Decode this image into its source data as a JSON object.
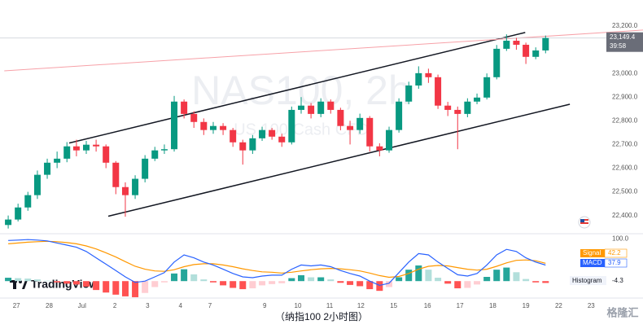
{
  "chart_data": [
    {
      "type": "candlestick",
      "title": "NAS100, 2h",
      "subtitle": "US 100 Cash CFD",
      "up_color": "#089981",
      "down_color": "#f23645",
      "x": [
        -0.25,
        0.05,
        0.35,
        0.64,
        0.94,
        1.24,
        1.54,
        1.83,
        2.13,
        2.43,
        2.73,
        3.03,
        3.32,
        3.62,
        3.92,
        4.22,
        4.51,
        4.81,
        5.11,
        5.41,
        5.71,
        6.0,
        6.3,
        6.6,
        6.9,
        7.2,
        7.49,
        7.79,
        8.09,
        8.39,
        8.68,
        8.98,
        9.28,
        9.58,
        9.88,
        10.17,
        10.47,
        10.77,
        11.07,
        11.36,
        11.66,
        11.96,
        12.26,
        12.56,
        12.85,
        13.15,
        13.45,
        13.75,
        14.04,
        14.34,
        14.64,
        14.94,
        15.24,
        15.53,
        15.83,
        16.13
      ],
      "open": [
        22360,
        22383,
        22434,
        22486,
        22572,
        22623,
        22640,
        22692,
        22675,
        22699,
        22692,
        22623,
        22520,
        22486,
        22555,
        22640,
        22675,
        22680,
        22881,
        22829,
        22795,
        22761,
        22778,
        22761,
        22709,
        22675,
        22726,
        22761,
        22733,
        22709,
        22846,
        22864,
        22829,
        22881,
        22846,
        22778,
        22761,
        22812,
        22692,
        22675,
        22761,
        22881,
        22949,
        23001,
        22984,
        22864,
        22846,
        22829,
        22881,
        22898,
        22984,
        23104,
        23138,
        23121,
        23070,
        23097
      ],
      "high": [
        22400,
        22450,
        22500,
        22590,
        22640,
        22670,
        22710,
        22720,
        22715,
        22720,
        22700,
        22630,
        22540,
        22570,
        22655,
        22690,
        22700,
        22905,
        22890,
        22840,
        22810,
        22795,
        22790,
        22770,
        22720,
        22740,
        22775,
        22770,
        22745,
        22860,
        22900,
        22875,
        22895,
        22890,
        22855,
        22800,
        22830,
        22820,
        22705,
        22775,
        22895,
        22965,
        23030,
        23020,
        22995,
        22880,
        22860,
        22895,
        22915,
        23000,
        23120,
        23165,
        23150,
        23130,
        23110,
        23160
      ],
      "low": [
        22345,
        22375,
        22420,
        22470,
        22555,
        22600,
        22625,
        22650,
        22660,
        22670,
        22600,
        22490,
        22395,
        22470,
        22540,
        22630,
        22660,
        22670,
        22810,
        22770,
        22740,
        22745,
        22740,
        22690,
        22615,
        22660,
        22715,
        22720,
        22690,
        22700,
        22830,
        22810,
        22815,
        22830,
        22760,
        22700,
        22745,
        22670,
        22650,
        22665,
        22750,
        22870,
        22935,
        22960,
        22850,
        22820,
        22680,
        22815,
        22870,
        22890,
        22975,
        23095,
        23100,
        23040,
        23060,
        23085
      ],
      "close": [
        22383,
        22434,
        22486,
        22572,
        22623,
        22640,
        22692,
        22675,
        22699,
        22692,
        22623,
        22520,
        22486,
        22555,
        22640,
        22675,
        22680,
        22881,
        22829,
        22795,
        22761,
        22778,
        22761,
        22709,
        22675,
        22726,
        22761,
        22733,
        22709,
        22846,
        22864,
        22829,
        22881,
        22846,
        22778,
        22761,
        22812,
        22692,
        22675,
        22761,
        22881,
        22949,
        23001,
        22984,
        22864,
        22846,
        22829,
        22881,
        22898,
        22984,
        23104,
        23138,
        23121,
        23070,
        23097,
        23149.4
      ],
      "last_close_label": "23,149.4",
      "countdown": "39:58",
      "trendlines": [
        {
          "color": "#131722",
          "x": [
            1.61,
            15.51
          ],
          "y": [
            22706,
            23173
          ]
        },
        {
          "color": "#131722",
          "x": [
            2.8,
            16.87
          ],
          "y": [
            22397,
            22870
          ]
        },
        {
          "color": "#f7a1a8",
          "x": [
            -0.37,
            19.1
          ],
          "y": [
            23011,
            23183
          ]
        }
      ],
      "xlim": [
        -0.5,
        19.1
      ],
      "xticks": [
        {
          "value": 0,
          "label": "27"
        },
        {
          "value": 1,
          "label": "28"
        },
        {
          "value": 2,
          "label": "Jul"
        },
        {
          "value": 3,
          "label": "2"
        },
        {
          "value": 4,
          "label": "3"
        },
        {
          "value": 5,
          "label": "4"
        },
        {
          "value": 5.9,
          "label": "7"
        },
        {
          "value": 7.57,
          "label": "9"
        },
        {
          "value": 8.58,
          "label": "10"
        },
        {
          "value": 9.55,
          "label": "11"
        },
        {
          "value": 10.5,
          "label": "12"
        },
        {
          "value": 11.5,
          "label": "15"
        },
        {
          "value": 12.53,
          "label": "16"
        },
        {
          "value": 13.52,
          "label": "17"
        },
        {
          "value": 14.52,
          "label": "18"
        },
        {
          "value": 15.53,
          "label": "19"
        },
        {
          "value": 16.53,
          "label": "22"
        },
        {
          "value": 17.52,
          "label": "23"
        }
      ],
      "ylim": [
        22330,
        23310
      ],
      "yticks": [
        {
          "value": 22400,
          "label": "22,400.0"
        },
        {
          "value": 22500,
          "label": "22,500.0"
        },
        {
          "value": 22600,
          "label": "22,600.0"
        },
        {
          "value": 22700,
          "label": "22,700.0"
        },
        {
          "value": 22800,
          "label": "22,800.0"
        },
        {
          "value": 22900,
          "label": "22,900.0"
        },
        {
          "value": 23000,
          "label": "23,000.0"
        },
        {
          "value": 23200,
          "label": "23,200.0"
        }
      ]
    },
    {
      "type": "macd",
      "x": [
        -0.25,
        0.05,
        0.35,
        0.64,
        0.94,
        1.24,
        1.54,
        1.83,
        2.13,
        2.43,
        2.73,
        3.03,
        3.32,
        3.62,
        3.92,
        4.22,
        4.51,
        4.81,
        5.11,
        5.41,
        5.71,
        6.0,
        6.3,
        6.6,
        6.9,
        7.2,
        7.49,
        7.79,
        8.09,
        8.39,
        8.68,
        8.98,
        9.28,
        9.58,
        9.88,
        10.17,
        10.47,
        10.77,
        11.07,
        11.36,
        11.66,
        11.96,
        12.26,
        12.56,
        12.85,
        13.15,
        13.45,
        13.75,
        14.04,
        14.34,
        14.64,
        14.94,
        15.24,
        15.53,
        15.83,
        16.13
      ],
      "series": [
        {
          "name": "Signal",
          "color": "#ff9800",
          "values": [
            88,
            90,
            92,
            93,
            94,
            93,
            91,
            88,
            83,
            76,
            67,
            57,
            46,
            35,
            28,
            24,
            23,
            27,
            34,
            39,
            41,
            41,
            38,
            34,
            29,
            25,
            22,
            21,
            19,
            21,
            24,
            27,
            29,
            30,
            29,
            27,
            24,
            19,
            13,
            9,
            11,
            18,
            28,
            35,
            37,
            36,
            32,
            28,
            26,
            28,
            35,
            43,
            49,
            50,
            48,
            42.2
          ]
        },
        {
          "name": "MACD",
          "color": "#2962ff",
          "values": [
            96,
            97,
            98,
            97,
            95,
            90,
            85,
            80,
            70,
            55,
            40,
            25,
            10,
            -3,
            0,
            10,
            20,
            45,
            62,
            55,
            45,
            38,
            28,
            18,
            10,
            8,
            12,
            14,
            14,
            28,
            38,
            36,
            38,
            34,
            25,
            18,
            12,
            0,
            -10,
            -5,
            20,
            45,
            65,
            62,
            45,
            30,
            15,
            12,
            18,
            38,
            62,
            75,
            70,
            55,
            45,
            37.9
          ]
        }
      ],
      "histogram": {
        "name": "Histogram",
        "values": [
          8,
          7,
          6,
          4,
          1,
          -3,
          -6,
          -8,
          -13,
          -21,
          -27,
          -32,
          -36,
          -38,
          -28,
          -14,
          -3,
          18,
          28,
          16,
          4,
          -3,
          -10,
          -16,
          -19,
          -17,
          -10,
          -7,
          -5,
          7,
          14,
          9,
          9,
          4,
          -4,
          -9,
          -12,
          -19,
          -23,
          -14,
          9,
          27,
          37,
          27,
          8,
          -6,
          -17,
          -16,
          -8,
          10,
          27,
          32,
          21,
          5,
          -3,
          -4.3
        ]
      },
      "ylim": [
        -40,
        110
      ],
      "yticks": [
        {
          "value": 100,
          "label": "100.0"
        }
      ]
    }
  ],
  "logo": "TradingView",
  "caption": "（纳指100 2小时图）",
  "watermark": "格隆汇"
}
